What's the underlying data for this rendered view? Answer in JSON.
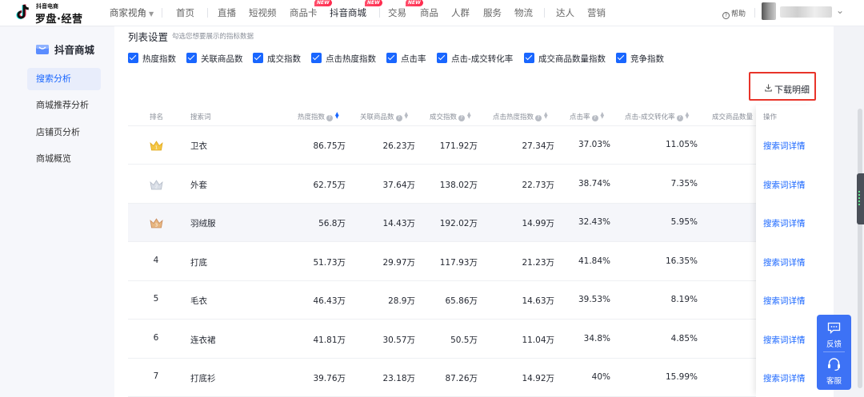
{
  "logo": {
    "small": "抖音电商",
    "big": "罗盘·经营"
  },
  "perspective": "商家视角",
  "nav": [
    {
      "label": "首页",
      "badge": ""
    },
    {
      "label": "直播",
      "badge": ""
    },
    {
      "label": "短视频",
      "badge": ""
    },
    {
      "label": "商品卡",
      "badge": "NEW"
    },
    {
      "label": "抖音商城",
      "badge": "NEW"
    },
    {
      "label": "交易",
      "badge": "NEW"
    },
    {
      "label": "商品",
      "badge": ""
    },
    {
      "label": "人群",
      "badge": ""
    },
    {
      "label": "服务",
      "badge": ""
    },
    {
      "label": "物流",
      "badge": ""
    },
    {
      "label": "达人",
      "badge": ""
    },
    {
      "label": "营销",
      "badge": ""
    }
  ],
  "help": "帮助",
  "sidebar": {
    "title": "抖音商城",
    "items": [
      "搜索分析",
      "商城推荐分析",
      "店铺页分析",
      "商城概览"
    ]
  },
  "settings": {
    "title": "列表设置",
    "hint": "勾选您想要展示的指标数据",
    "checkboxes": [
      "热度指数",
      "关联商品数",
      "成交指数",
      "点击热度指数",
      "点击率",
      "点击-成交转化率",
      "成交商品数量指数",
      "竞争指数"
    ]
  },
  "download_label": "下载明细",
  "table": {
    "headers": {
      "rank": "排名",
      "keyword": "搜索词",
      "heat": "热度指数",
      "related": "关联商品数",
      "deal": "成交指数",
      "click_heat": "点击热度指数",
      "ctr": "点击率",
      "cvr": "点击-成交转化率",
      "deal_qty": "成交商品数量",
      "op": "操作"
    },
    "rows": [
      {
        "rank": "1",
        "keyword": "卫衣",
        "heat": "86.75万",
        "related": "26.23万",
        "deal": "171.92万",
        "click_heat": "27.34万",
        "ctr": "37.03%",
        "cvr": "11.05%",
        "op": "搜索词详情"
      },
      {
        "rank": "2",
        "keyword": "外套",
        "heat": "62.75万",
        "related": "37.64万",
        "deal": "138.02万",
        "click_heat": "22.73万",
        "ctr": "38.74%",
        "cvr": "7.35%",
        "op": "搜索词详情"
      },
      {
        "rank": "3",
        "keyword": "羽绒服",
        "heat": "56.8万",
        "related": "14.43万",
        "deal": "192.02万",
        "click_heat": "14.99万",
        "ctr": "32.43%",
        "cvr": "5.95%",
        "op": "搜索词详情"
      },
      {
        "rank": "4",
        "keyword": "打底",
        "heat": "51.73万",
        "related": "29.97万",
        "deal": "117.93万",
        "click_heat": "21.23万",
        "ctr": "41.84%",
        "cvr": "16.35%",
        "op": "搜索词详情"
      },
      {
        "rank": "5",
        "keyword": "毛衣",
        "heat": "46.43万",
        "related": "28.9万",
        "deal": "65.86万",
        "click_heat": "14.63万",
        "ctr": "39.53%",
        "cvr": "8.19%",
        "op": "搜索词详情"
      },
      {
        "rank": "6",
        "keyword": "连衣裙",
        "heat": "41.81万",
        "related": "30.57万",
        "deal": "50.5万",
        "click_heat": "11.04万",
        "ctr": "34.8%",
        "cvr": "4.85%",
        "op": "搜索词详情"
      },
      {
        "rank": "7",
        "keyword": "打底衫",
        "heat": "39.76万",
        "related": "23.18万",
        "deal": "87.26万",
        "click_heat": "14.92万",
        "ctr": "40%",
        "cvr": "15.99%",
        "op": "搜索词详情"
      }
    ]
  },
  "float": {
    "feedback": "反馈",
    "service": "客服"
  },
  "colors": {
    "accent": "#1966ff",
    "download_border": "#e8342a",
    "new_badge": "#ff2a4d",
    "float_bg": "#3d72f5"
  }
}
